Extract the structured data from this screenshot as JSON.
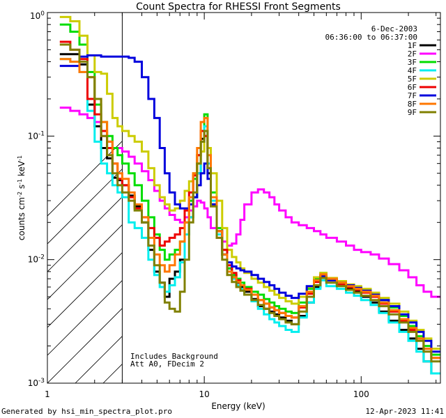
{
  "chart_data": {
    "type": "line",
    "title": "Count Spectra for RHESSI Front Segments",
    "xlabel": "Energy (keV)",
    "ylabel_parts": [
      "counts cm",
      "-2",
      " s",
      "-1",
      " keV",
      "-1"
    ],
    "x_scale": "log",
    "y_scale": "log",
    "xlim": [
      1,
      320
    ],
    "ylim": [
      0.001,
      1.0
    ],
    "x_ticks": [
      {
        "value": 1,
        "label": "1"
      },
      {
        "value": 10,
        "label": "10"
      },
      {
        "value": 100,
        "label": "100"
      }
    ],
    "y_ticks": [
      {
        "value": 0.001,
        "base": "10",
        "exp": "-3"
      },
      {
        "value": 0.01,
        "base": "10",
        "exp": "-2"
      },
      {
        "value": 0.1,
        "base": "10",
        "exp": "-1"
      },
      {
        "value": 1,
        "base": "10",
        "exp": "0"
      }
    ],
    "shaded_region": {
      "from": 1,
      "to": 3,
      "style": "hatched"
    },
    "annotations": {
      "date": "6-Dec-2003",
      "time_range": "06:36:00 to 06:37:00",
      "note_line1": "Includes Background",
      "note_line2": "Att A0, FDecim 2"
    },
    "footer": {
      "generated_by": "Generated by hsi_min_spectra_plot.pro",
      "timestamp": "12-Apr-2023 11:41"
    },
    "x_edges": [
      1.2,
      1.4,
      1.6,
      1.8,
      2.0,
      2.2,
      2.4,
      2.6,
      2.8,
      3.0,
      3.3,
      3.6,
      4.0,
      4.4,
      4.8,
      5.2,
      5.6,
      6.0,
      6.5,
      7.0,
      7.5,
      8.0,
      8.5,
      9.0,
      9.5,
      10.0,
      10.5,
      11.0,
      12.0,
      13.0,
      14.0,
      15.0,
      16.0,
      17.0,
      18.0,
      20.0,
      22.0,
      24.0,
      26.0,
      28.0,
      30.0,
      33.0,
      36.0,
      40.0,
      45.0,
      50.0,
      55.0,
      60.0,
      70.0,
      80.0,
      90.0,
      100.0,
      115.0,
      130.0,
      150.0,
      175.0,
      200.0,
      225.0,
      250.0,
      280.0,
      320.0
    ],
    "series": [
      {
        "name": "1F",
        "color": "#000000",
        "values": [
          0.46,
          0.46,
          0.38,
          0.18,
          0.12,
          0.08,
          0.066,
          0.046,
          0.044,
          0.04,
          0.033,
          0.027,
          0.02,
          0.012,
          0.008,
          0.0065,
          0.005,
          0.007,
          0.008,
          0.01,
          0.016,
          0.022,
          0.032,
          0.05,
          0.095,
          0.1,
          0.05,
          0.028,
          0.017,
          0.012,
          0.0085,
          0.0075,
          0.0065,
          0.006,
          0.0055,
          0.0048,
          0.0042,
          0.004,
          0.0038,
          0.0036,
          0.0034,
          0.0032,
          0.003,
          0.0035,
          0.0045,
          0.006,
          0.0075,
          0.0068,
          0.0062,
          0.0058,
          0.0055,
          0.005,
          0.0045,
          0.0038,
          0.0032,
          0.0027,
          0.0023,
          0.0019,
          0.0015,
          0.0012
        ]
      },
      {
        "name": "2F",
        "color": "#ff00ff",
        "values": [
          0.17,
          0.16,
          0.15,
          0.14,
          0.13,
          0.1,
          0.09,
          0.08,
          0.08,
          0.075,
          0.068,
          0.06,
          0.052,
          0.044,
          0.036,
          0.03,
          0.026,
          0.023,
          0.021,
          0.02,
          0.022,
          0.025,
          0.027,
          0.03,
          0.029,
          0.026,
          0.022,
          0.018,
          0.015,
          0.014,
          0.013,
          0.0135,
          0.016,
          0.021,
          0.028,
          0.035,
          0.037,
          0.035,
          0.032,
          0.028,
          0.025,
          0.022,
          0.02,
          0.019,
          0.018,
          0.017,
          0.016,
          0.015,
          0.014,
          0.013,
          0.012,
          0.0115,
          0.011,
          0.0102,
          0.0092,
          0.0082,
          0.0072,
          0.0062,
          0.0055,
          0.005
        ]
      },
      {
        "name": "3F",
        "color": "#00dd00",
        "values": [
          0.8,
          0.7,
          0.55,
          0.33,
          0.18,
          0.13,
          0.1,
          0.08,
          0.07,
          0.06,
          0.05,
          0.04,
          0.03,
          0.022,
          0.016,
          0.012,
          0.01,
          0.011,
          0.012,
          0.014,
          0.02,
          0.03,
          0.045,
          0.07,
          0.11,
          0.15,
          0.08,
          0.035,
          0.018,
          0.011,
          0.0085,
          0.0075,
          0.007,
          0.0065,
          0.006,
          0.0055,
          0.0052,
          0.0048,
          0.0045,
          0.0042,
          0.004,
          0.0038,
          0.0037,
          0.0045,
          0.0058,
          0.007,
          0.0078,
          0.007,
          0.0066,
          0.0062,
          0.006,
          0.0057,
          0.0053,
          0.0047,
          0.0041,
          0.0035,
          0.0029,
          0.0024,
          0.002,
          0.0017
        ]
      },
      {
        "name": "4F",
        "color": "#00eeee",
        "values": [
          0.42,
          0.4,
          0.33,
          0.16,
          0.09,
          0.06,
          0.05,
          0.04,
          0.035,
          0.032,
          0.02,
          0.018,
          0.015,
          0.01,
          0.0075,
          0.006,
          0.0055,
          0.0062,
          0.0072,
          0.0095,
          0.016,
          0.022,
          0.032,
          0.05,
          0.09,
          0.12,
          0.06,
          0.03,
          0.016,
          0.011,
          0.008,
          0.007,
          0.0062,
          0.0058,
          0.0052,
          0.0046,
          0.004,
          0.0036,
          0.0033,
          0.0031,
          0.0029,
          0.0027,
          0.0026,
          0.0034,
          0.0045,
          0.0058,
          0.0068,
          0.0061,
          0.0058,
          0.0054,
          0.0051,
          0.0047,
          0.0043,
          0.0037,
          0.0031,
          0.0026,
          0.0022,
          0.0018,
          0.0015,
          0.0012
        ]
      },
      {
        "name": "5F",
        "color": "#cccc00",
        "values": [
          0.92,
          0.85,
          0.65,
          0.45,
          0.33,
          0.32,
          0.22,
          0.14,
          0.12,
          0.11,
          0.1,
          0.09,
          0.075,
          0.055,
          0.04,
          0.032,
          0.028,
          0.025,
          0.026,
          0.03,
          0.036,
          0.043,
          0.05,
          0.06,
          0.075,
          0.1,
          0.08,
          0.05,
          0.03,
          0.018,
          0.012,
          0.0105,
          0.0095,
          0.0085,
          0.0078,
          0.007,
          0.0065,
          0.006,
          0.0056,
          0.0052,
          0.0049,
          0.0046,
          0.0044,
          0.005,
          0.006,
          0.0072,
          0.0078,
          0.0071,
          0.0067,
          0.0063,
          0.0061,
          0.0058,
          0.0054,
          0.0049,
          0.0044,
          0.0038,
          0.0032,
          0.0027,
          0.0023,
          0.0019
        ]
      },
      {
        "name": "6F",
        "color": "#ee0000",
        "values": [
          0.58,
          0.5,
          0.42,
          0.2,
          0.15,
          0.11,
          0.08,
          0.06,
          0.045,
          0.04,
          0.032,
          0.026,
          0.022,
          0.018,
          0.015,
          0.013,
          0.014,
          0.015,
          0.016,
          0.018,
          0.025,
          0.035,
          0.048,
          0.07,
          0.11,
          0.1,
          0.055,
          0.028,
          0.017,
          0.012,
          0.009,
          0.0078,
          0.0068,
          0.0062,
          0.0058,
          0.0052,
          0.0047,
          0.0044,
          0.0041,
          0.0039,
          0.0037,
          0.0035,
          0.0034,
          0.0041,
          0.0053,
          0.0066,
          0.0074,
          0.0068,
          0.0063,
          0.006,
          0.0057,
          0.0054,
          0.005,
          0.0044,
          0.0038,
          0.0032,
          0.0027,
          0.0023,
          0.0019,
          0.0016
        ]
      },
      {
        "name": "7F",
        "color": "#0000dd",
        "values": [
          0.37,
          0.37,
          0.44,
          0.45,
          0.45,
          0.44,
          0.44,
          0.44,
          0.44,
          0.44,
          0.43,
          0.4,
          0.3,
          0.2,
          0.14,
          0.08,
          0.05,
          0.035,
          0.028,
          0.026,
          0.026,
          0.028,
          0.032,
          0.04,
          0.05,
          0.06,
          0.045,
          0.028,
          0.017,
          0.011,
          0.0095,
          0.0088,
          0.0085,
          0.0082,
          0.008,
          0.0075,
          0.007,
          0.0066,
          0.0062,
          0.0058,
          0.0054,
          0.0051,
          0.0049,
          0.0053,
          0.0061,
          0.0068,
          0.0073,
          0.0068,
          0.0065,
          0.0062,
          0.0059,
          0.0056,
          0.0052,
          0.0047,
          0.0042,
          0.0036,
          0.0031,
          0.0026,
          0.0022,
          0.0018
        ]
      },
      {
        "name": "8F",
        "color": "#ff7700",
        "values": [
          0.42,
          0.4,
          0.33,
          0.3,
          0.2,
          0.13,
          0.09,
          0.06,
          0.05,
          0.045,
          0.035,
          0.028,
          0.022,
          0.015,
          0.011,
          0.009,
          0.008,
          0.009,
          0.011,
          0.014,
          0.02,
          0.032,
          0.05,
          0.08,
          0.13,
          0.14,
          0.07,
          0.032,
          0.017,
          0.011,
          0.008,
          0.0072,
          0.0066,
          0.0062,
          0.0057,
          0.0052,
          0.0047,
          0.0044,
          0.0041,
          0.0039,
          0.0037,
          0.0035,
          0.0034,
          0.0042,
          0.0055,
          0.0068,
          0.0076,
          0.007,
          0.0065,
          0.0061,
          0.0058,
          0.0055,
          0.0051,
          0.0045,
          0.0039,
          0.0033,
          0.0028,
          0.0023,
          0.0019,
          0.0016
        ]
      },
      {
        "name": "9F",
        "color": "#808000",
        "values": [
          0.55,
          0.5,
          0.4,
          0.3,
          0.2,
          0.1,
          0.07,
          0.05,
          0.04,
          0.035,
          0.03,
          0.025,
          0.02,
          0.013,
          0.009,
          0.0065,
          0.0045,
          0.004,
          0.0038,
          0.0055,
          0.01,
          0.02,
          0.035,
          0.06,
          0.09,
          0.11,
          0.055,
          0.027,
          0.015,
          0.01,
          0.0075,
          0.0066,
          0.006,
          0.0056,
          0.0052,
          0.0047,
          0.0043,
          0.004,
          0.0037,
          0.0035,
          0.0033,
          0.0031,
          0.003,
          0.0038,
          0.005,
          0.0062,
          0.0071,
          0.0065,
          0.0061,
          0.0057,
          0.0054,
          0.0051,
          0.0047,
          0.0042,
          0.0036,
          0.0031,
          0.0026,
          0.0022,
          0.0018,
          0.0015
        ]
      }
    ]
  }
}
